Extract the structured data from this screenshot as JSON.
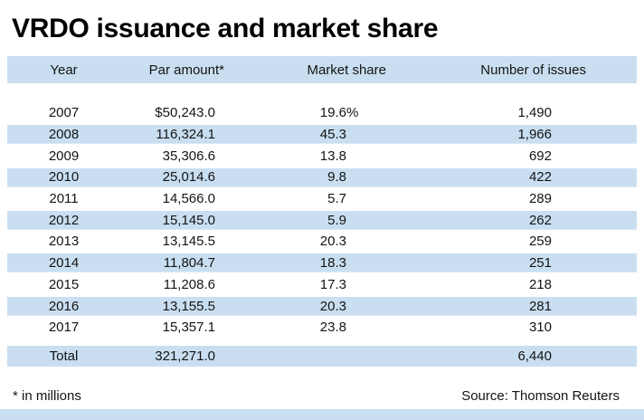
{
  "title": "VRDO issuance and market share",
  "table": {
    "columns": [
      "Year",
      "Par amount*",
      "Market share",
      "Number of issues"
    ],
    "rows": [
      {
        "year": "2007",
        "par": "$50,243.0",
        "share": "19.6",
        "share_suffix": "%",
        "issues": "1,490"
      },
      {
        "year": "2008",
        "par": "116,324.1",
        "share": "45.3",
        "share_suffix": "",
        "issues": "1,966"
      },
      {
        "year": "2009",
        "par": "35,306.6",
        "share": "13.8",
        "share_suffix": "",
        "issues": "692"
      },
      {
        "year": "2010",
        "par": "25,014.6",
        "share": "9.8",
        "share_suffix": "",
        "issues": "422"
      },
      {
        "year": "2011",
        "par": "14,566.0",
        "share": "5.7",
        "share_suffix": "",
        "issues": "289"
      },
      {
        "year": "2012",
        "par": "15,145.0",
        "share": "5.9",
        "share_suffix": "",
        "issues": "262"
      },
      {
        "year": "2013",
        "par": "13,145.5",
        "share": "20.3",
        "share_suffix": "",
        "issues": "259"
      },
      {
        "year": "2014",
        "par": "11,804.7",
        "share": "18.3",
        "share_suffix": "",
        "issues": "251"
      },
      {
        "year": "2015",
        "par": "11,208.6",
        "share": "17.3",
        "share_suffix": "",
        "issues": "218"
      },
      {
        "year": "2016",
        "par": "13,155.5",
        "share": "20.3",
        "share_suffix": "",
        "issues": "281"
      },
      {
        "year": "2017",
        "par": "15,357.1",
        "share": "23.8",
        "share_suffix": "",
        "issues": "310"
      }
    ],
    "total": {
      "label": "Total",
      "par": "321,271.0",
      "share": "",
      "share_suffix": "",
      "issues": "6,440"
    }
  },
  "footnote": "* in millions",
  "source": "Source: Thomson Reuters",
  "colors": {
    "row_stripe": "#c9dff1",
    "text": "#141414"
  },
  "chart_data": {
    "type": "table",
    "title": "VRDO issuance and market share",
    "categories": [
      2007,
      2008,
      2009,
      2010,
      2011,
      2012,
      2013,
      2014,
      2015,
      2016,
      2017
    ],
    "series": [
      {
        "name": "Par amount (millions USD)",
        "values": [
          50243.0,
          116324.1,
          35306.6,
          25014.6,
          14566.0,
          15145.0,
          13145.5,
          11804.7,
          11208.6,
          13155.5,
          15357.1
        ]
      },
      {
        "name": "Market share (%)",
        "values": [
          19.6,
          45.3,
          13.8,
          9.8,
          5.7,
          5.9,
          20.3,
          18.3,
          17.3,
          20.3,
          23.8
        ]
      },
      {
        "name": "Number of issues",
        "values": [
          1490,
          1966,
          692,
          422,
          289,
          262,
          259,
          251,
          218,
          281,
          310
        ]
      }
    ],
    "totals": {
      "par_amount_millions": 321271.0,
      "number_of_issues": 6440
    },
    "footnote": "* in millions",
    "source": "Thomson Reuters"
  }
}
